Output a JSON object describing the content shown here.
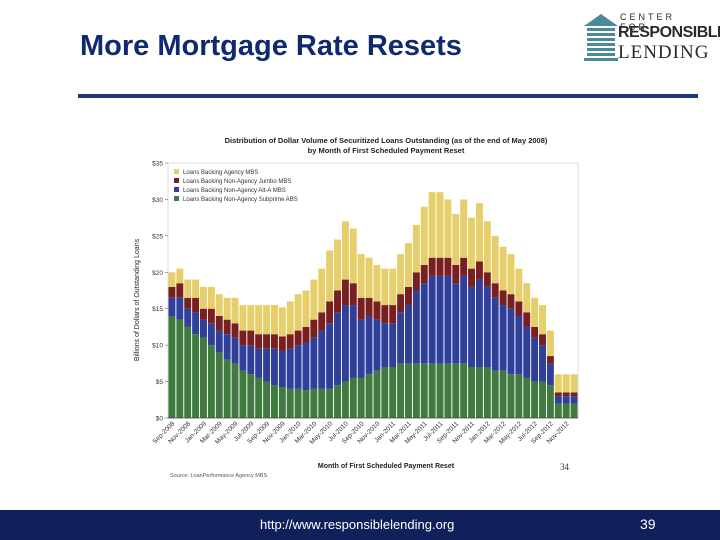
{
  "slide": {
    "title": "More Mortgage Rate Resets",
    "footer_url": "http://www.responsiblelending.org",
    "page_number": "39"
  },
  "logo": {
    "line1": "CENTER FOR",
    "line2": "RESPONSIBLE",
    "line3": "LENDING"
  },
  "chart_data": {
    "type": "bar",
    "stacked": true,
    "title": "Distribution of Dollar Volume of Securitized Loans Outstanding (as of the end of May 2008)",
    "subtitle": "by Month of First Scheduled Payment Reset",
    "xlabel": "Month of First Scheduled Payment Reset",
    "ylabel": "Billions of Dollars of Outstanding Loans",
    "ylim": [
      0,
      35
    ],
    "yticks": [
      "$0",
      "$5",
      "$10",
      "$15",
      "$20",
      "$25",
      "$30",
      "$35"
    ],
    "source": "Source: LoanPerformance Agency MBS",
    "corner_number": "34",
    "legend_position": "top-left",
    "grid": false,
    "colors": {
      "agency": "#e6cf6a",
      "jumbo": "#7a1f1f",
      "alta": "#2f3f9a",
      "subprime": "#3f7a3f"
    },
    "xtick_labels": [
      "Sep-2008",
      "Nov-2008",
      "Jan-2009",
      "Mar-2009",
      "May-2009",
      "Jul-2009",
      "Sep-2009",
      "Nov-2009",
      "Jan-2010",
      "Mar-2010",
      "May-2010",
      "Jul-2010",
      "Sep-2010",
      "Nov-2010",
      "Jan-2011",
      "Mar-2011",
      "May-2011",
      "Jul-2011",
      "Sep-2011",
      "Nov-2011",
      "Jan-2012",
      "Mar-2012",
      "May-2012",
      "Jul-2012",
      "Sep-2012",
      "Nov-2012"
    ],
    "categories": [
      "Sep-2008",
      "Oct-2008",
      "Nov-2008",
      "Dec-2008",
      "Jan-2009",
      "Feb-2009",
      "Mar-2009",
      "Apr-2009",
      "May-2009",
      "Jun-2009",
      "Jul-2009",
      "Aug-2009",
      "Sep-2009",
      "Oct-2009",
      "Nov-2009",
      "Dec-2009",
      "Jan-2010",
      "Feb-2010",
      "Mar-2010",
      "Apr-2010",
      "May-2010",
      "Jun-2010",
      "Jul-2010",
      "Aug-2010",
      "Sep-2010",
      "Oct-2010",
      "Nov-2010",
      "Dec-2010",
      "Jan-2011",
      "Feb-2011",
      "Mar-2011",
      "Apr-2011",
      "May-2011",
      "Jun-2011",
      "Jul-2011",
      "Aug-2011",
      "Sep-2011",
      "Oct-2011",
      "Nov-2011",
      "Dec-2011",
      "Jan-2012",
      "Feb-2012",
      "Mar-2012",
      "Apr-2012",
      "May-2012",
      "Jun-2012",
      "Jul-2012",
      "Aug-2012",
      "Sep-2012",
      "Oct-2012",
      "Nov-2012",
      "Dec-2012"
    ],
    "series": [
      {
        "name": "Loans Backing Non-Agency Subprime ABS",
        "color_key": "subprime",
        "values": [
          14,
          13.5,
          12.5,
          11.5,
          11,
          10,
          9,
          8,
          7.5,
          6.5,
          6,
          5.5,
          5,
          4.5,
          4.2,
          4,
          4,
          3.8,
          4,
          4,
          4,
          4.5,
          5,
          5.5,
          5.5,
          6,
          6.5,
          7,
          7,
          7.5,
          7.5,
          7.5,
          7.5,
          7.5,
          7.5,
          7.5,
          7.5,
          7.5,
          7,
          7,
          7,
          6.5,
          6.5,
          6,
          6,
          5.5,
          5,
          5,
          4.5,
          2,
          2,
          2
        ]
      },
      {
        "name": "Loans Backing Non-Agency Alt-A MBS",
        "color_key": "alta",
        "values": [
          2.5,
          3,
          2.5,
          3,
          2.5,
          3,
          3,
          3.5,
          3.5,
          3.5,
          4,
          4,
          4.5,
          5,
          5,
          5.5,
          6,
          6.5,
          7,
          8,
          9,
          10,
          10.5,
          10,
          8,
          8,
          7,
          6,
          6,
          7,
          8,
          10,
          11,
          12,
          12,
          12,
          11,
          12,
          11,
          12,
          11,
          10,
          9,
          9,
          8,
          7,
          6,
          5,
          3,
          1,
          1,
          1
        ]
      },
      {
        "name": "Loans Backing Non-Agency Jumbo MBS",
        "color_key": "jumbo",
        "values": [
          1.5,
          2,
          1.5,
          2,
          1.5,
          2,
          2,
          2,
          2,
          2,
          2,
          2,
          2,
          2,
          2,
          2,
          2,
          2.2,
          2.5,
          2.5,
          3,
          3,
          3.5,
          3,
          3,
          2.5,
          2.5,
          2.5,
          2.5,
          2.5,
          2.5,
          2.5,
          2.5,
          2.5,
          2.5,
          2.5,
          2.5,
          2.5,
          2.5,
          2.5,
          2,
          2,
          2,
          2,
          2,
          2,
          1.5,
          1.5,
          1,
          0.5,
          0.5,
          0.5
        ]
      },
      {
        "name": "Loans Backing Agency MBS",
        "color_key": "agency",
        "values": [
          2,
          2,
          2.5,
          2.5,
          3,
          3,
          3,
          3,
          3.5,
          3.5,
          3.5,
          4,
          4,
          4,
          4,
          4.5,
          5,
          5,
          5.5,
          6,
          7,
          7,
          8,
          7.5,
          6,
          5.5,
          5,
          5,
          5,
          5.5,
          6,
          6.5,
          8,
          9,
          9,
          8,
          7,
          8,
          7,
          8,
          7,
          6.5,
          6,
          5.5,
          4.5,
          4,
          4,
          4,
          3.5,
          2.5,
          2.5,
          2.5
        ]
      }
    ]
  }
}
